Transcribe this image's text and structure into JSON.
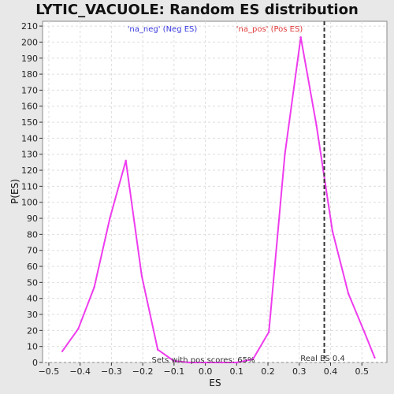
{
  "chart_data": {
    "type": "line",
    "title": "LYTIC_VACUOLE: Random ES distribution",
    "xlabel": "ES",
    "ylabel": "P(ES)",
    "xlim": [
      -0.52,
      0.58
    ],
    "ylim": [
      0,
      213
    ],
    "x_ticks": [
      -0.5,
      -0.4,
      -0.3,
      -0.2,
      -0.1,
      0.0,
      0.1,
      0.2,
      0.3,
      0.4,
      0.5
    ],
    "x_tick_labels": [
      "−0.5",
      "−0.4",
      "−0.3",
      "−0.2",
      "−0.1",
      "0.0",
      "0.1",
      "0.2",
      "0.3",
      "0.4",
      "0.5"
    ],
    "y_ticks": [
      0,
      10,
      20,
      30,
      40,
      50,
      60,
      70,
      80,
      90,
      100,
      110,
      120,
      130,
      140,
      150,
      160,
      170,
      180,
      190,
      200,
      210
    ],
    "grid": true,
    "series": [
      {
        "color": "#ee3cee",
        "x": [
          -0.457,
          -0.406,
          -0.355,
          -0.305,
          -0.254,
          -0.203,
          -0.152,
          -0.101,
          -0.051,
          0.0,
          0.051,
          0.101,
          0.152,
          0.203,
          0.254,
          0.305,
          0.355,
          0.406,
          0.457,
          0.508,
          0.541
        ],
        "y": [
          7,
          21,
          47,
          90,
          126,
          54,
          8,
          1,
          0,
          0,
          0,
          0,
          2,
          19,
          130,
          203,
          148,
          82,
          43,
          19,
          3
        ]
      }
    ],
    "vline": {
      "x": 0.38,
      "label": "Real ES 0.4",
      "color": "#333333"
    },
    "legend": [
      {
        "label": "'na_neg' (Neg ES)",
        "color": "#3a3ae0"
      },
      {
        "label": "'na_pos' (Pos ES)",
        "color": "#e03a3a"
      }
    ],
    "annotations": {
      "sets_text": "Sets with pos scores: 65%"
    }
  }
}
